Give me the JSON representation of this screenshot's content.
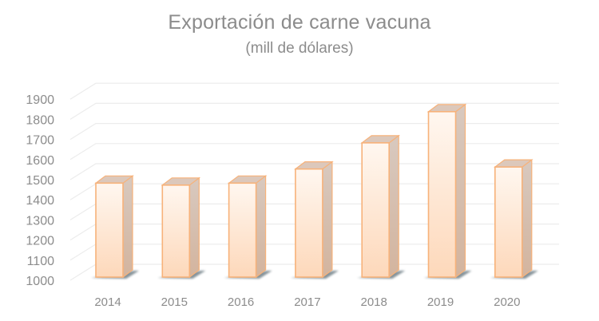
{
  "chart_data": {
    "type": "bar",
    "style": "3d-column",
    "title": "Exportación de carne vacuna",
    "subtitle": "(mill de dólares)",
    "xlabel": "",
    "ylabel": "",
    "categories": [
      "2014",
      "2015",
      "2016",
      "2017",
      "2018",
      "2019",
      "2020"
    ],
    "values": [
      1475,
      1465,
      1475,
      1545,
      1675,
      1830,
      1555
    ],
    "yticks": [
      1000,
      1100,
      1200,
      1300,
      1400,
      1500,
      1600,
      1700,
      1800,
      1900
    ],
    "ylim": [
      1000,
      1950
    ],
    "grid": true,
    "legend": null,
    "colors": {
      "bar_fill_top": "#fff6ee",
      "bar_fill_bottom": "#fdd9bc",
      "bar_edge": "#f7b27a",
      "bar_side": "#d2bfb2",
      "bar_cap": "#dcc8bb",
      "grid": "#ececec",
      "text": "#8c8c8c",
      "shadow": "#5f7078"
    }
  }
}
